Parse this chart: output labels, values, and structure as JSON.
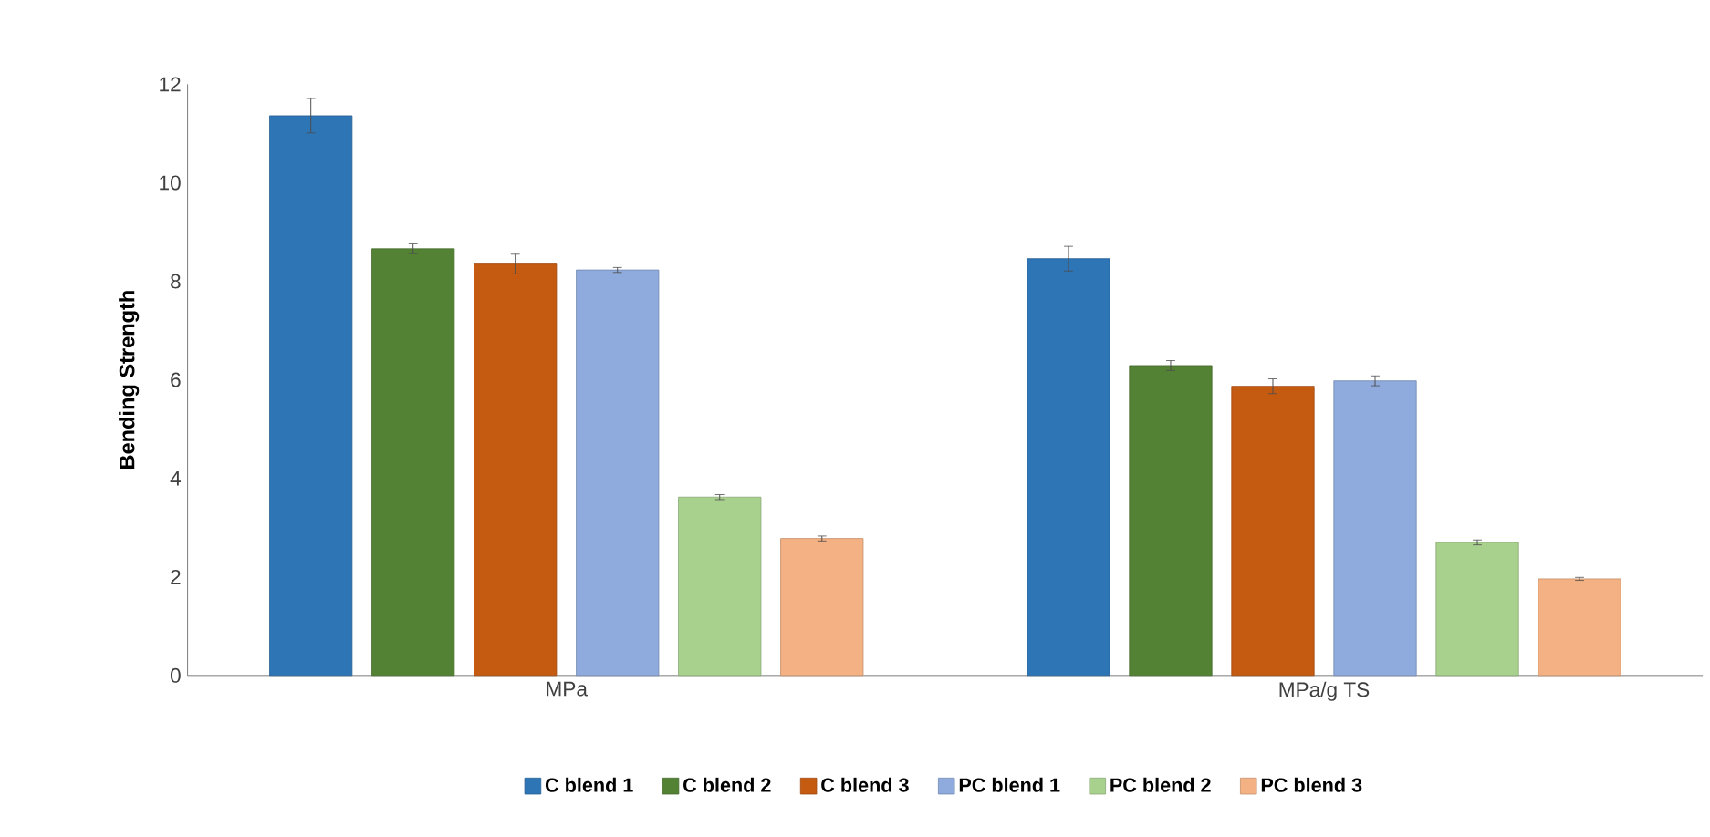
{
  "chart_data": {
    "type": "bar",
    "ylabel": "Bending Strength",
    "categories": [
      "MPa",
      "MPa/g TS"
    ],
    "series": [
      {
        "name": "C blend 1",
        "color": "#2e75b6",
        "values": [
          11.36,
          8.46
        ],
        "errors": [
          0.35,
          0.25
        ]
      },
      {
        "name": "C blend 2",
        "color": "#548235",
        "values": [
          8.66,
          6.29
        ],
        "errors": [
          0.1,
          0.1
        ]
      },
      {
        "name": "C blend 3",
        "color": "#c55a11",
        "values": [
          8.35,
          5.87
        ],
        "errors": [
          0.2,
          0.15
        ]
      },
      {
        "name": "PC blend 1",
        "color": "#8faadc",
        "values": [
          8.23,
          5.98
        ],
        "errors": [
          0.05,
          0.1
        ]
      },
      {
        "name": "PC blend 2",
        "color": "#a9d18e",
        "values": [
          3.62,
          2.7
        ],
        "errors": [
          0.05,
          0.05
        ]
      },
      {
        "name": "PC blend 3",
        "color": "#f4b183",
        "values": [
          2.78,
          1.96
        ],
        "errors": [
          0.05,
          0.03
        ]
      }
    ],
    "ylim": [
      0,
      12
    ],
    "yticks": [
      0,
      2,
      4,
      6,
      8,
      10,
      12
    ],
    "legend": "bottom"
  }
}
